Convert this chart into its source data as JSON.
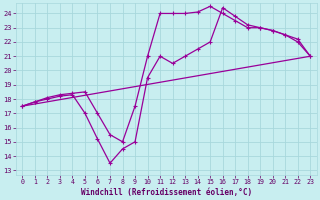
{
  "background_color": "#c8eef0",
  "grid_color": "#a8d8dc",
  "line_color": "#990099",
  "xlabel": "Windchill (Refroidissement éolien,°C)",
  "xlabel_color": "#660066",
  "tick_color": "#660066",
  "xlim": [
    -0.5,
    23.5
  ],
  "ylim": [
    13,
    24.5
  ],
  "yticks": [
    13,
    14,
    15,
    16,
    17,
    18,
    19,
    20,
    21,
    22,
    23,
    24
  ],
  "xticks": [
    0,
    1,
    2,
    3,
    4,
    5,
    6,
    7,
    8,
    9,
    10,
    11,
    12,
    13,
    14,
    15,
    16,
    17,
    18,
    19,
    20,
    21,
    22,
    23
  ],
  "line1_x": [
    0,
    23
  ],
  "line1_y": [
    17.5,
    21.0
  ],
  "line2_x": [
    0,
    1,
    2,
    3,
    4,
    5,
    6,
    7,
    8,
    9,
    10,
    11,
    12,
    13,
    14,
    15,
    16,
    17,
    18,
    19,
    20,
    21,
    22,
    23
  ],
  "line2_y": [
    17.5,
    17.8,
    18.1,
    18.3,
    18.4,
    18.5,
    17.0,
    15.5,
    15.0,
    17.5,
    21.0,
    24.0,
    24.0,
    24.0,
    24.1,
    24.5,
    24.0,
    23.5,
    23.0,
    23.0,
    22.8,
    22.5,
    22.2,
    21.0
  ],
  "line3_x": [
    0,
    1,
    2,
    3,
    4,
    5,
    6,
    7,
    8,
    9,
    10,
    11,
    12,
    13,
    14,
    15,
    16,
    17,
    18,
    19,
    20,
    21,
    22,
    23
  ],
  "line3_y": [
    17.5,
    17.8,
    18.0,
    18.2,
    18.3,
    17.0,
    15.2,
    13.5,
    14.5,
    15.0,
    19.5,
    21.0,
    20.5,
    21.0,
    21.5,
    22.0,
    24.4,
    23.8,
    23.2,
    23.0,
    22.8,
    22.5,
    22.0,
    21.0
  ]
}
